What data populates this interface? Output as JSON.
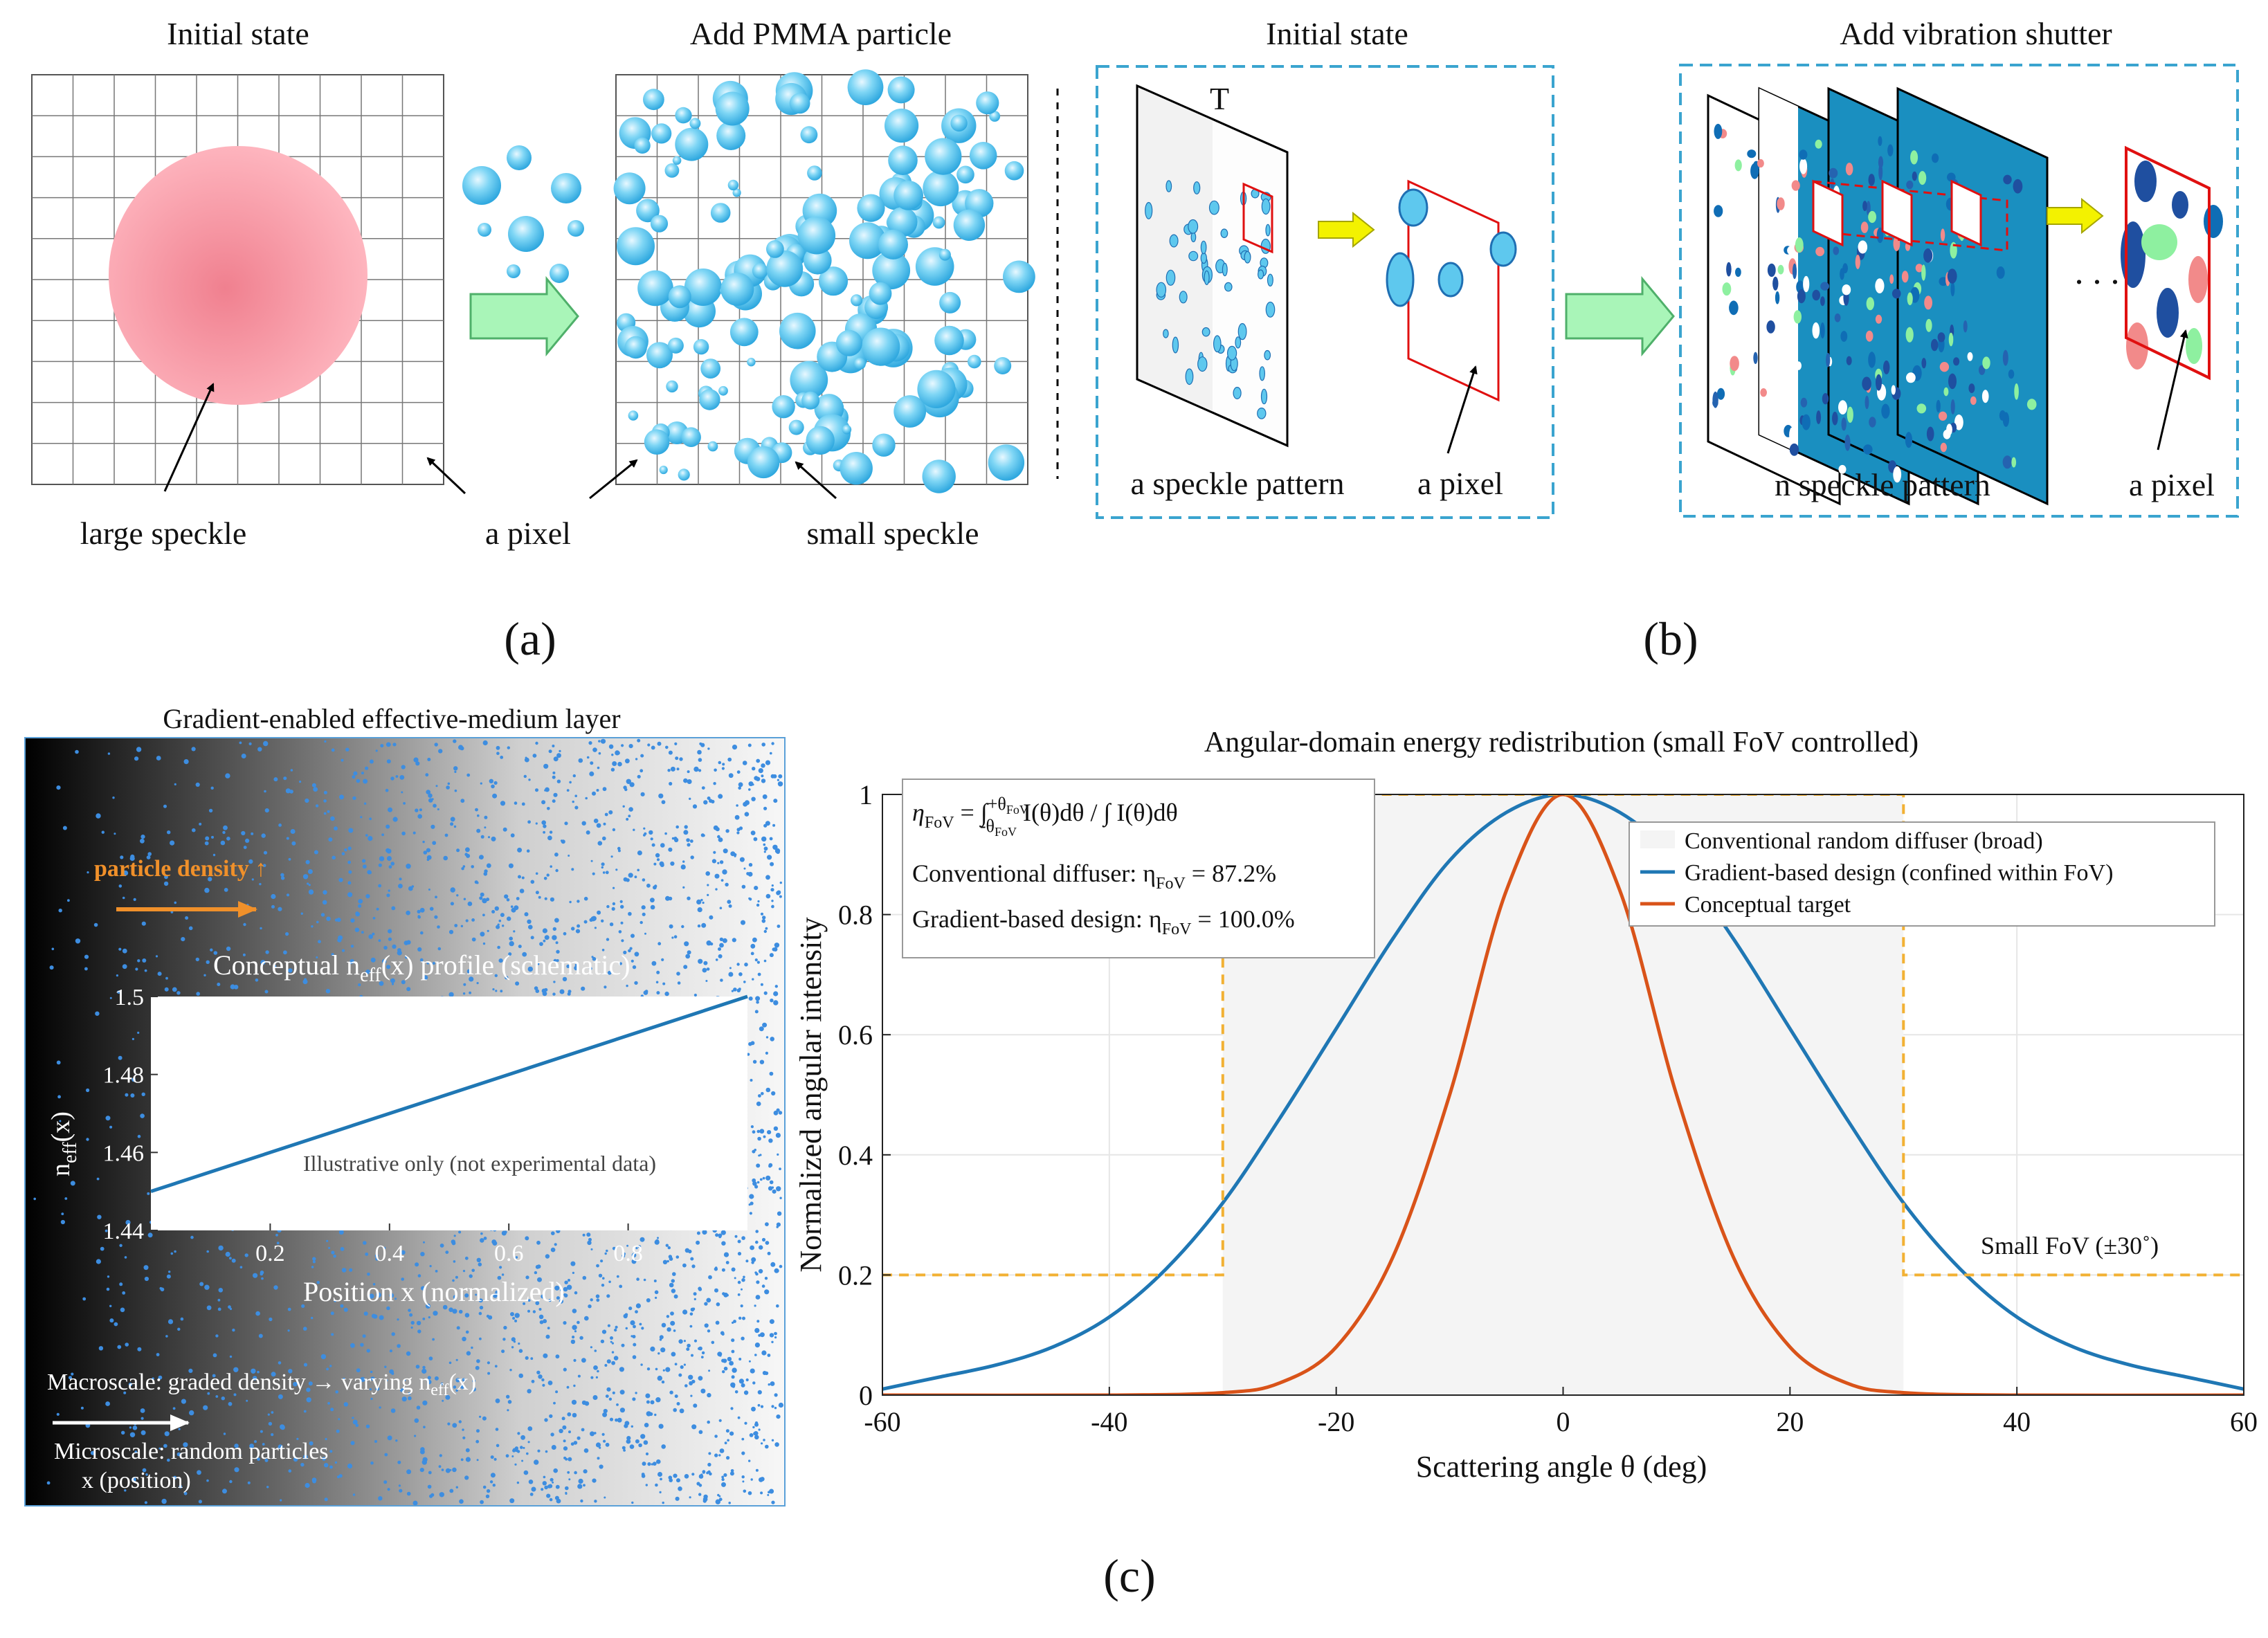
{
  "colors": {
    "speckle_blue": "#5ec8ee",
    "speckle_dark": "#1f6fb3",
    "pink": "#f26b7a",
    "arrow_green": "#a9f5b8",
    "arrow_yellow": "#f3f200",
    "dash_border": "#3aa4cf",
    "curve_blue": "#1f77b4",
    "curve_orange": "#d95319",
    "fov_dash": "#f2b134",
    "shutter_fill": "#1a8fc0"
  },
  "panel_a": {
    "left_title": "Initial state",
    "right_title": "Add PMMA particle",
    "label_large_speckle": "large speckle",
    "label_pixel": "a pixel",
    "label_small_speckle": "small speckle",
    "caption": "(a)"
  },
  "panel_b": {
    "left_title": "Initial state",
    "right_title": "Add vibration shutter",
    "t_label": "T",
    "label_speckle_pattern": "a speckle pattern",
    "label_pixel_left": "a pixel",
    "label_n_speckle": "n speckle pattern",
    "label_pixel_right": "a pixel",
    "dots": ". . .",
    "caption": "(b)"
  },
  "panel_c": {
    "caption": "(c)",
    "layer": {
      "title": "Gradient-enabled effective-medium layer",
      "density_label": "particle density ↑",
      "inset_title_pre": "Conceptual n",
      "inset_title_sub": "eff",
      "inset_title_post": "(x) profile (schematic)",
      "inset_ylabel_pre": "n",
      "inset_ylabel_sub": "eff",
      "inset_ylabel_post": "(x)",
      "inset_xlabel": "Position x (normalized)",
      "inset_note": "Illustrative only (not experimental data)",
      "macro_pre": "Macroscale: graded density → varying n",
      "macro_sub": "eff",
      "macro_post": "(x)",
      "micro_line1": "Microscale: random particles",
      "micro_line2": "x (position)"
    },
    "plot_text": {
      "eq_lhs": "η",
      "eq_lhs_sub": "FoV",
      "eq_mid": " = ∫",
      "eq_upper": "+θ",
      "eq_upper_sub": "FoV",
      "eq_lower": "-θ",
      "eq_lower_sub": "FoV",
      "eq_rhs": " I(θ)dθ / ∫ I(θ)dθ",
      "conv_label": "Conventional diffuser: η",
      "conv_sub": "FoV",
      "conv_value": " = 87.2%",
      "grad_label": "Gradient-based design: η",
      "grad_sub": "FoV",
      "grad_value": " = 100.0%",
      "fov_label": "Small FoV (±30˚)"
    }
  },
  "chart_data": [
    {
      "type": "line",
      "title": "Angular-domain energy redistribution (small FoV controlled)",
      "xlabel": "Scattering angle θ (deg)",
      "ylabel": "Normalized angular intensity",
      "xlim": [
        -60,
        60
      ],
      "ylim": [
        0,
        1
      ],
      "xticks": [
        -60,
        -40,
        -20,
        0,
        20,
        40,
        60
      ],
      "yticks": [
        0,
        0.2,
        0.4,
        0.6,
        0.8,
        1
      ],
      "fov_region": [
        -30,
        30
      ],
      "legend": [
        "Conventional random diffuser (broad)",
        "Gradient-based design (confined within FoV)",
        "Conceptual target"
      ],
      "legend_position": "upper-right",
      "series": [
        {
          "name": "Gradient-based design (confined within FoV)",
          "x": [
            -60,
            -55,
            -50,
            -45,
            -40,
            -35,
            -30,
            -25,
            -20,
            -15,
            -10,
            -5,
            0,
            5,
            10,
            15,
            20,
            25,
            30,
            35,
            40,
            45,
            50,
            55,
            60
          ],
          "values": [
            0.01,
            0.03,
            0.05,
            0.08,
            0.13,
            0.21,
            0.32,
            0.46,
            0.61,
            0.76,
            0.89,
            0.97,
            1.0,
            0.97,
            0.89,
            0.76,
            0.61,
            0.46,
            0.32,
            0.21,
            0.13,
            0.08,
            0.05,
            0.03,
            0.01
          ]
        },
        {
          "name": "Conceptual target",
          "x": [
            -60,
            -40,
            -30,
            -25,
            -20,
            -15,
            -10,
            -5,
            0,
            5,
            10,
            15,
            20,
            25,
            30,
            40,
            60
          ],
          "values": [
            0,
            0,
            0.004,
            0.02,
            0.08,
            0.23,
            0.5,
            0.84,
            1.0,
            0.84,
            0.5,
            0.23,
            0.08,
            0.02,
            0.004,
            0,
            0
          ]
        },
        {
          "name": "Small FoV (±30˚)",
          "x": [
            -60,
            -30,
            -30,
            30,
            30,
            60
          ],
          "values": [
            0.2,
            0.2,
            1.0,
            1.0,
            0.2,
            0.2
          ]
        }
      ]
    },
    {
      "type": "line",
      "title": "Conceptual neff(x) profile (schematic)",
      "xlabel": "Position x (normalized)",
      "ylabel": "neff(x)",
      "xlim": [
        0,
        1
      ],
      "ylim": [
        1.44,
        1.5
      ],
      "xticks": [
        0.2,
        0.4,
        0.6,
        0.8
      ],
      "xtick_labels": [
        "0.2",
        "0.4",
        "0.6",
        "0.8"
      ],
      "yticks": [
        1.44,
        1.46,
        1.48,
        1.5
      ],
      "series": [
        {
          "name": "neff",
          "x": [
            0,
            1
          ],
          "values": [
            1.45,
            1.5
          ]
        }
      ]
    }
  ]
}
